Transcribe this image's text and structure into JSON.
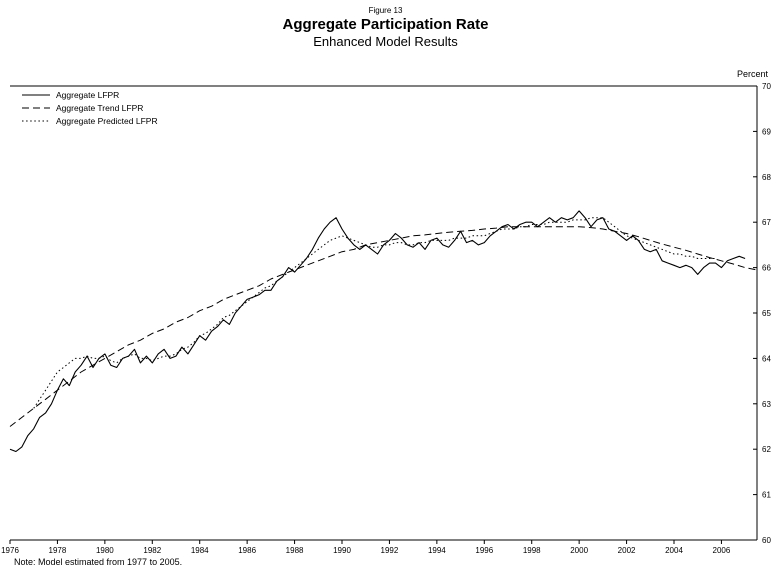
{
  "figure": {
    "figure_label": "Figure 13",
    "title": "Aggregate Participation Rate",
    "subtitle": "Enhanced Model Results",
    "note": "Note: Model estimated from 1977 to 2005."
  },
  "chart_data": {
    "type": "line",
    "title": "Aggregate Participation Rate",
    "subtitle": "Enhanced Model Results",
    "xlabel": "",
    "ylabel": "Percent",
    "xlim": [
      1976,
      2007.5
    ],
    "ylim": [
      60,
      70
    ],
    "x_ticks": [
      1976,
      1978,
      1980,
      1982,
      1984,
      1986,
      1988,
      1990,
      1992,
      1994,
      1996,
      1998,
      2000,
      2002,
      2004,
      2006
    ],
    "y_ticks": [
      60,
      61,
      62,
      63,
      64,
      65,
      66,
      67,
      68,
      69,
      70
    ],
    "grid": false,
    "legend_position": "top-left",
    "line_color": "#000000",
    "series": [
      {
        "name": "Aggregate LFPR",
        "style": "solid",
        "x_start": 1976.0,
        "x_step": 0.25,
        "values": [
          62.0,
          61.95,
          62.05,
          62.3,
          62.45,
          62.7,
          62.8,
          63.0,
          63.3,
          63.55,
          63.4,
          63.7,
          63.85,
          64.05,
          63.8,
          64.0,
          64.1,
          63.85,
          63.8,
          64.0,
          64.05,
          64.2,
          63.9,
          64.05,
          63.9,
          64.1,
          64.2,
          64.0,
          64.05,
          64.25,
          64.1,
          64.3,
          64.5,
          64.4,
          64.6,
          64.7,
          64.85,
          64.75,
          65.0,
          65.15,
          65.3,
          65.35,
          65.4,
          65.5,
          65.5,
          65.7,
          65.8,
          66.0,
          65.9,
          66.05,
          66.2,
          66.4,
          66.65,
          66.85,
          67.0,
          67.1,
          66.85,
          66.65,
          66.5,
          66.4,
          66.5,
          66.4,
          66.3,
          66.5,
          66.6,
          66.75,
          66.65,
          66.5,
          66.45,
          66.55,
          66.4,
          66.6,
          66.65,
          66.5,
          66.45,
          66.6,
          66.8,
          66.55,
          66.6,
          66.5,
          66.55,
          66.7,
          66.8,
          66.9,
          66.95,
          66.85,
          66.95,
          67.0,
          67.0,
          66.9,
          67.0,
          67.1,
          67.0,
          67.1,
          67.05,
          67.1,
          67.25,
          67.1,
          66.9,
          67.05,
          67.1,
          66.85,
          66.8,
          66.7,
          66.6,
          66.7,
          66.6,
          66.4,
          66.35,
          66.4,
          66.15,
          66.1,
          66.05,
          66.0,
          66.05,
          66.0,
          65.85,
          66.0,
          66.1,
          66.1,
          66.0,
          66.15,
          66.2,
          66.25,
          66.2
        ]
      },
      {
        "name": "Aggregate Trend LFPR",
        "style": "dashed",
        "x_start": 1976.0,
        "x_step": 0.5,
        "values": [
          62.5,
          62.7,
          62.9,
          63.1,
          63.3,
          63.5,
          63.7,
          63.85,
          64.0,
          64.15,
          64.3,
          64.4,
          64.55,
          64.65,
          64.8,
          64.9,
          65.05,
          65.15,
          65.3,
          65.4,
          65.5,
          65.6,
          65.75,
          65.85,
          65.95,
          66.05,
          66.15,
          66.25,
          66.35,
          66.4,
          66.5,
          66.55,
          66.6,
          66.65,
          66.7,
          66.72,
          66.75,
          66.78,
          66.8,
          66.82,
          66.85,
          66.87,
          66.9,
          66.9,
          66.9,
          66.9,
          66.9,
          66.9,
          66.9,
          66.88,
          66.85,
          66.8,
          66.75,
          66.68,
          66.6,
          66.52,
          66.45,
          66.38,
          66.3,
          66.22,
          66.15,
          66.08,
          66.0,
          65.95
        ]
      },
      {
        "name": "Aggregate Predicted LFPR",
        "style": "dotted",
        "x_start": 1977.0,
        "x_step": 0.25,
        "values": [
          62.9,
          63.1,
          63.3,
          63.5,
          63.7,
          63.8,
          63.9,
          64.0,
          64.0,
          64.05,
          64.0,
          64.0,
          64.05,
          63.95,
          63.9,
          64.0,
          64.05,
          64.1,
          64.0,
          64.0,
          63.95,
          64.0,
          64.05,
          64.05,
          64.1,
          64.2,
          64.25,
          64.35,
          64.5,
          64.55,
          64.65,
          64.75,
          64.9,
          64.95,
          65.05,
          65.15,
          65.25,
          65.35,
          65.45,
          65.55,
          65.6,
          65.7,
          65.8,
          65.9,
          66.0,
          66.1,
          66.2,
          66.3,
          66.4,
          66.5,
          66.6,
          66.65,
          66.7,
          66.65,
          66.6,
          66.55,
          66.5,
          66.45,
          66.45,
          66.5,
          66.5,
          66.55,
          66.55,
          66.5,
          66.5,
          66.55,
          66.55,
          66.6,
          66.6,
          66.6,
          66.6,
          66.65,
          66.65,
          66.65,
          66.7,
          66.7,
          66.7,
          66.75,
          66.8,
          66.85,
          66.85,
          66.85,
          66.9,
          66.9,
          66.95,
          66.95,
          66.95,
          67.0,
          67.0,
          67.0,
          67.0,
          67.05,
          67.05,
          67.05,
          67.1,
          67.1,
          67.1,
          67.0,
          66.9,
          66.8,
          66.7,
          66.65,
          66.6,
          66.55,
          66.5,
          66.45,
          66.4,
          66.35,
          66.3,
          66.3,
          66.25,
          66.25,
          66.2,
          66.2,
          66.2,
          66.2
        ]
      }
    ]
  }
}
